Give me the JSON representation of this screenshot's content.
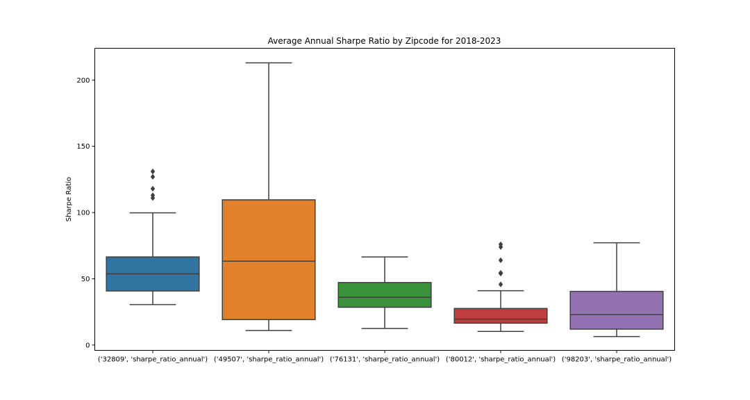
{
  "chart_data": {
    "type": "boxplot",
    "title": "Average Annual Sharpe Ratio by Zipcode for 2018-2023",
    "xlabel": "",
    "ylabel": "Sharpe Ratio",
    "ylim": [
      -4,
      224
    ],
    "yticks": [
      0,
      50,
      100,
      150,
      200
    ],
    "grid": false,
    "categories": [
      "('32809', 'sharpe_ratio_annual')",
      "('49507', 'sharpe_ratio_annual')",
      "('76131', 'sharpe_ratio_annual')",
      "('80012', 'sharpe_ratio_annual')",
      "('98203', 'sharpe_ratio_annual')"
    ],
    "boxes": [
      {
        "whisker_low": 30.5,
        "q1": 40.8,
        "median": 53.7,
        "q3": 66.5,
        "whisker_high": 99.8,
        "outliers": [
          111,
          113,
          118,
          127,
          131
        ],
        "color": "#3274a1"
      },
      {
        "whisker_low": 11,
        "q1": 19.2,
        "median": 63.3,
        "q3": 109.6,
        "whisker_high": 213,
        "outliers": [],
        "color": "#e1812c"
      },
      {
        "whisker_low": 12.5,
        "q1": 28.5,
        "median": 36,
        "q3": 47.2,
        "whisker_high": 66.5,
        "outliers": [],
        "color": "#3a923a"
      },
      {
        "whisker_low": 10.3,
        "q1": 16.5,
        "median": 19.5,
        "q3": 27.6,
        "whisker_high": 41,
        "outliers": [
          45.8,
          54,
          54.5,
          64,
          74,
          76
        ],
        "color": "#c03d3e"
      },
      {
        "whisker_low": 6.4,
        "q1": 12,
        "median": 23,
        "q3": 40.5,
        "whisker_high": 77.2,
        "outliers": [],
        "color": "#9372b2"
      }
    ]
  }
}
